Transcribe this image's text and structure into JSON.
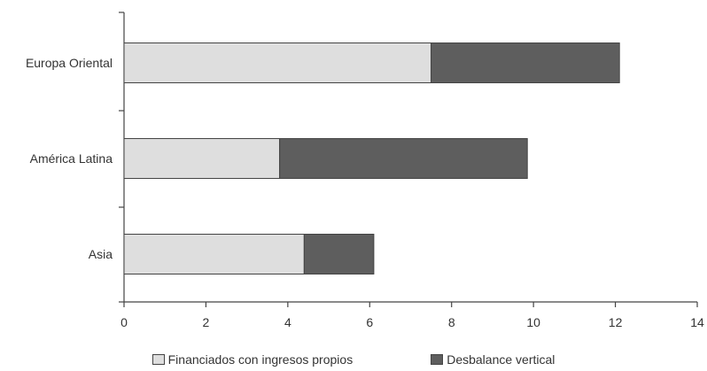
{
  "chart_data": {
    "type": "bar",
    "orientation": "horizontal",
    "stacked": true,
    "categories": [
      "Europa Oriental",
      "América Latina",
      "Asia"
    ],
    "series": [
      {
        "name": "Financiados con ingresos propios",
        "color": "#dedede",
        "values": [
          7.5,
          3.8,
          4.4
        ]
      },
      {
        "name": "Desbalance vertical",
        "color": "#5e5e5e",
        "values": [
          4.6,
          6.05,
          1.7
        ]
      }
    ],
    "xlim": [
      0,
      14
    ],
    "xticks": [
      0,
      2,
      4,
      6,
      8,
      10,
      12,
      14
    ],
    "grid": false,
    "legend_position": "bottom"
  }
}
